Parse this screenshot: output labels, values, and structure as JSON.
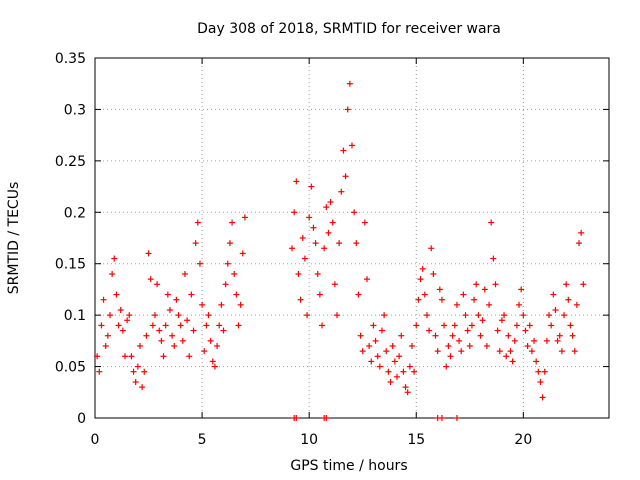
{
  "chart_data": {
    "type": "scatter",
    "title": "Day 308 of 2018, SRMTID for receiver wara",
    "xlabel": "GPS time / hours",
    "ylabel": "SRMTID / TECUs",
    "xlim": [
      0,
      24
    ],
    "ylim": [
      0,
      0.35
    ],
    "x_ticks": [
      0,
      5,
      10,
      15,
      20
    ],
    "x_tick_labels": [
      "0",
      "5",
      "10",
      "15",
      "20"
    ],
    "y_ticks": [
      0,
      0.05,
      0.1,
      0.15,
      0.2,
      0.25,
      0.3,
      0.35
    ],
    "y_tick_labels": [
      "0",
      "0.05",
      "0.1",
      "0.15",
      "0.2",
      "0.25",
      "0.3",
      "0.35"
    ],
    "grid": true,
    "marker": "+",
    "color": "#ff0000",
    "series": [
      {
        "name": "SRMTID",
        "points": [
          [
            0.1,
            0.06
          ],
          [
            0.2,
            0.045
          ],
          [
            0.3,
            0.09
          ],
          [
            0.4,
            0.115
          ],
          [
            0.5,
            0.07
          ],
          [
            0.6,
            0.08
          ],
          [
            0.7,
            0.1
          ],
          [
            0.8,
            0.14
          ],
          [
            0.9,
            0.155
          ],
          [
            1.0,
            0.12
          ],
          [
            1.1,
            0.09
          ],
          [
            1.2,
            0.105
          ],
          [
            1.3,
            0.085
          ],
          [
            1.4,
            0.06
          ],
          [
            1.5,
            0.095
          ],
          [
            1.6,
            0.1
          ],
          [
            1.7,
            0.06
          ],
          [
            1.8,
            0.045
          ],
          [
            1.9,
            0.035
          ],
          [
            2.0,
            0.05
          ],
          [
            2.1,
            0.07
          ],
          [
            2.2,
            0.03
          ],
          [
            2.3,
            0.045
          ],
          [
            2.4,
            0.08
          ],
          [
            2.5,
            0.16
          ],
          [
            2.6,
            0.135
          ],
          [
            2.7,
            0.09
          ],
          [
            2.8,
            0.1
          ],
          [
            2.9,
            0.13
          ],
          [
            3.0,
            0.085
          ],
          [
            3.1,
            0.075
          ],
          [
            3.2,
            0.06
          ],
          [
            3.3,
            0.09
          ],
          [
            3.4,
            0.12
          ],
          [
            3.5,
            0.105
          ],
          [
            3.6,
            0.08
          ],
          [
            3.7,
            0.07
          ],
          [
            3.8,
            0.115
          ],
          [
            3.9,
            0.1
          ],
          [
            4.0,
            0.09
          ],
          [
            4.1,
            0.075
          ],
          [
            4.2,
            0.14
          ],
          [
            4.3,
            0.095
          ],
          [
            4.4,
            0.06
          ],
          [
            4.5,
            0.12
          ],
          [
            4.6,
            0.085
          ],
          [
            4.7,
            0.17
          ],
          [
            4.8,
            0.19
          ],
          [
            4.9,
            0.15
          ],
          [
            5.0,
            0.11
          ],
          [
            5.1,
            0.065
          ],
          [
            5.2,
            0.09
          ],
          [
            5.3,
            0.1
          ],
          [
            5.4,
            0.075
          ],
          [
            5.5,
            0.055
          ],
          [
            5.6,
            0.05
          ],
          [
            5.7,
            0.07
          ],
          [
            5.8,
            0.09
          ],
          [
            5.9,
            0.11
          ],
          [
            6.0,
            0.085
          ],
          [
            6.1,
            0.13
          ],
          [
            6.2,
            0.15
          ],
          [
            6.3,
            0.17
          ],
          [
            6.4,
            0.19
          ],
          [
            6.5,
            0.14
          ],
          [
            6.6,
            0.12
          ],
          [
            6.7,
            0.09
          ],
          [
            6.8,
            0.11
          ],
          [
            6.9,
            0.16
          ],
          [
            7.0,
            0.195
          ],
          [
            9.2,
            0.165
          ],
          [
            9.3,
            0.2
          ],
          [
            9.4,
            0.23
          ],
          [
            9.5,
            0.14
          ],
          [
            9.6,
            0.115
          ],
          [
            9.7,
            0.175
          ],
          [
            9.8,
            0.155
          ],
          [
            9.9,
            0.1
          ],
          [
            10.0,
            0.195
          ],
          [
            10.1,
            0.225
          ],
          [
            10.2,
            0.185
          ],
          [
            10.3,
            0.17
          ],
          [
            10.4,
            0.14
          ],
          [
            10.5,
            0.12
          ],
          [
            10.6,
            0.09
          ],
          [
            10.7,
            0.165
          ],
          [
            10.8,
            0.205
          ],
          [
            10.9,
            0.18
          ],
          [
            11.0,
            0.21
          ],
          [
            11.1,
            0.19
          ],
          [
            11.2,
            0.13
          ],
          [
            11.3,
            0.1
          ],
          [
            11.4,
            0.17
          ],
          [
            11.5,
            0.22
          ],
          [
            11.6,
            0.26
          ],
          [
            11.7,
            0.235
          ],
          [
            11.8,
            0.3
          ],
          [
            11.9,
            0.325
          ],
          [
            12.0,
            0.265
          ],
          [
            12.1,
            0.2
          ],
          [
            12.2,
            0.17
          ],
          [
            12.3,
            0.12
          ],
          [
            12.4,
            0.08
          ],
          [
            12.5,
            0.065
          ],
          [
            12.6,
            0.19
          ],
          [
            12.7,
            0.135
          ],
          [
            12.8,
            0.07
          ],
          [
            12.9,
            0.055
          ],
          [
            13.0,
            0.09
          ],
          [
            13.1,
            0.075
          ],
          [
            13.2,
            0.06
          ],
          [
            13.3,
            0.05
          ],
          [
            13.4,
            0.085
          ],
          [
            13.5,
            0.1
          ],
          [
            13.6,
            0.065
          ],
          [
            13.7,
            0.045
          ],
          [
            13.8,
            0.035
          ],
          [
            13.9,
            0.07
          ],
          [
            14.0,
            0.055
          ],
          [
            14.1,
            0.04
          ],
          [
            14.2,
            0.06
          ],
          [
            14.3,
            0.08
          ],
          [
            14.4,
            0.045
          ],
          [
            14.5,
            0.03
          ],
          [
            14.6,
            0.025
          ],
          [
            14.7,
            0.05
          ],
          [
            14.8,
            0.07
          ],
          [
            14.9,
            0.045
          ],
          [
            15.0,
            0.09
          ],
          [
            15.1,
            0.115
          ],
          [
            15.2,
            0.135
          ],
          [
            15.3,
            0.145
          ],
          [
            15.4,
            0.12
          ],
          [
            15.5,
            0.1
          ],
          [
            15.6,
            0.085
          ],
          [
            15.7,
            0.165
          ],
          [
            15.8,
            0.14
          ],
          [
            15.9,
            0.08
          ],
          [
            16.0,
            0.065
          ],
          [
            16.1,
            0.125
          ],
          [
            16.2,
            0.115
          ],
          [
            16.3,
            0.09
          ],
          [
            16.4,
            0.05
          ],
          [
            16.5,
            0.07
          ],
          [
            16.6,
            0.06
          ],
          [
            16.7,
            0.08
          ],
          [
            16.8,
            0.09
          ],
          [
            16.9,
            0.11
          ],
          [
            17.0,
            0.075
          ],
          [
            17.1,
            0.065
          ],
          [
            17.2,
            0.12
          ],
          [
            17.3,
            0.1
          ],
          [
            17.4,
            0.085
          ],
          [
            17.5,
            0.07
          ],
          [
            17.6,
            0.09
          ],
          [
            17.7,
            0.115
          ],
          [
            17.8,
            0.13
          ],
          [
            17.9,
            0.1
          ],
          [
            18.0,
            0.08
          ],
          [
            18.1,
            0.095
          ],
          [
            18.2,
            0.125
          ],
          [
            18.3,
            0.07
          ],
          [
            18.4,
            0.11
          ],
          [
            18.5,
            0.19
          ],
          [
            18.6,
            0.155
          ],
          [
            18.7,
            0.13
          ],
          [
            18.8,
            0.085
          ],
          [
            18.9,
            0.065
          ],
          [
            19.0,
            0.095
          ],
          [
            19.1,
            0.1
          ],
          [
            19.2,
            0.06
          ],
          [
            19.3,
            0.08
          ],
          [
            19.4,
            0.065
          ],
          [
            19.5,
            0.055
          ],
          [
            19.6,
            0.075
          ],
          [
            19.7,
            0.09
          ],
          [
            19.8,
            0.11
          ],
          [
            19.9,
            0.125
          ],
          [
            20.0,
            0.1
          ],
          [
            20.1,
            0.085
          ],
          [
            20.2,
            0.07
          ],
          [
            20.3,
            0.09
          ],
          [
            20.4,
            0.065
          ],
          [
            20.5,
            0.075
          ],
          [
            20.6,
            0.055
          ],
          [
            20.7,
            0.045
          ],
          [
            20.8,
            0.035
          ],
          [
            20.9,
            0.02
          ],
          [
            21.0,
            0.045
          ],
          [
            21.1,
            0.075
          ],
          [
            21.2,
            0.1
          ],
          [
            21.3,
            0.09
          ],
          [
            21.4,
            0.12
          ],
          [
            21.5,
            0.105
          ],
          [
            21.6,
            0.075
          ],
          [
            21.7,
            0.08
          ],
          [
            21.8,
            0.065
          ],
          [
            21.9,
            0.1
          ],
          [
            22.0,
            0.13
          ],
          [
            22.1,
            0.115
          ],
          [
            22.2,
            0.09
          ],
          [
            22.3,
            0.08
          ],
          [
            22.4,
            0.065
          ],
          [
            22.5,
            0.11
          ],
          [
            22.6,
            0.17
          ],
          [
            22.7,
            0.18
          ],
          [
            22.8,
            0.13
          ]
        ]
      }
    ],
    "zero_points_x": [
      9.3,
      9.4,
      10.7,
      10.8,
      16.0,
      16.2,
      16.9
    ]
  }
}
